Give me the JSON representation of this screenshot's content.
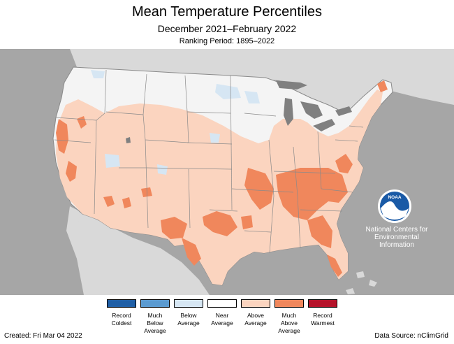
{
  "header": {
    "title": "Mean Temperature Percentiles",
    "subtitle": "December 2021–February 2022",
    "ranking": "Ranking Period: 1895–2022"
  },
  "legend": {
    "items": [
      {
        "label": "Record\nColdest",
        "color": "#1f5fa6"
      },
      {
        "label": "Much\nBelow\nAverage",
        "color": "#5b9bd1"
      },
      {
        "label": "Below\nAverage",
        "color": "#d6e6f3"
      },
      {
        "label": "Near\nAverage",
        "color": "#ffffff"
      },
      {
        "label": "Above\nAverage",
        "color": "#fbd4bf"
      },
      {
        "label": "Much\nAbove\nAverage",
        "color": "#f0875c"
      },
      {
        "label": "Record\nWarmest",
        "color": "#b5122a"
      }
    ]
  },
  "logo": {
    "name": "NOAA",
    "org_text": "National Centers for\nEnvironmental\nInformation"
  },
  "footer": {
    "created": "Created: Fri Mar 04 2022",
    "source": "Data Source: nClimGrid"
  },
  "colors": {
    "background_gray": "#a6a6a6",
    "land_gray": "#d9d9d9",
    "above_average": "#fbd4bf",
    "much_above_average": "#f0875c",
    "below_average": "#d6e6f3",
    "near_average": "#f4f4f4",
    "water": "#808080"
  }
}
